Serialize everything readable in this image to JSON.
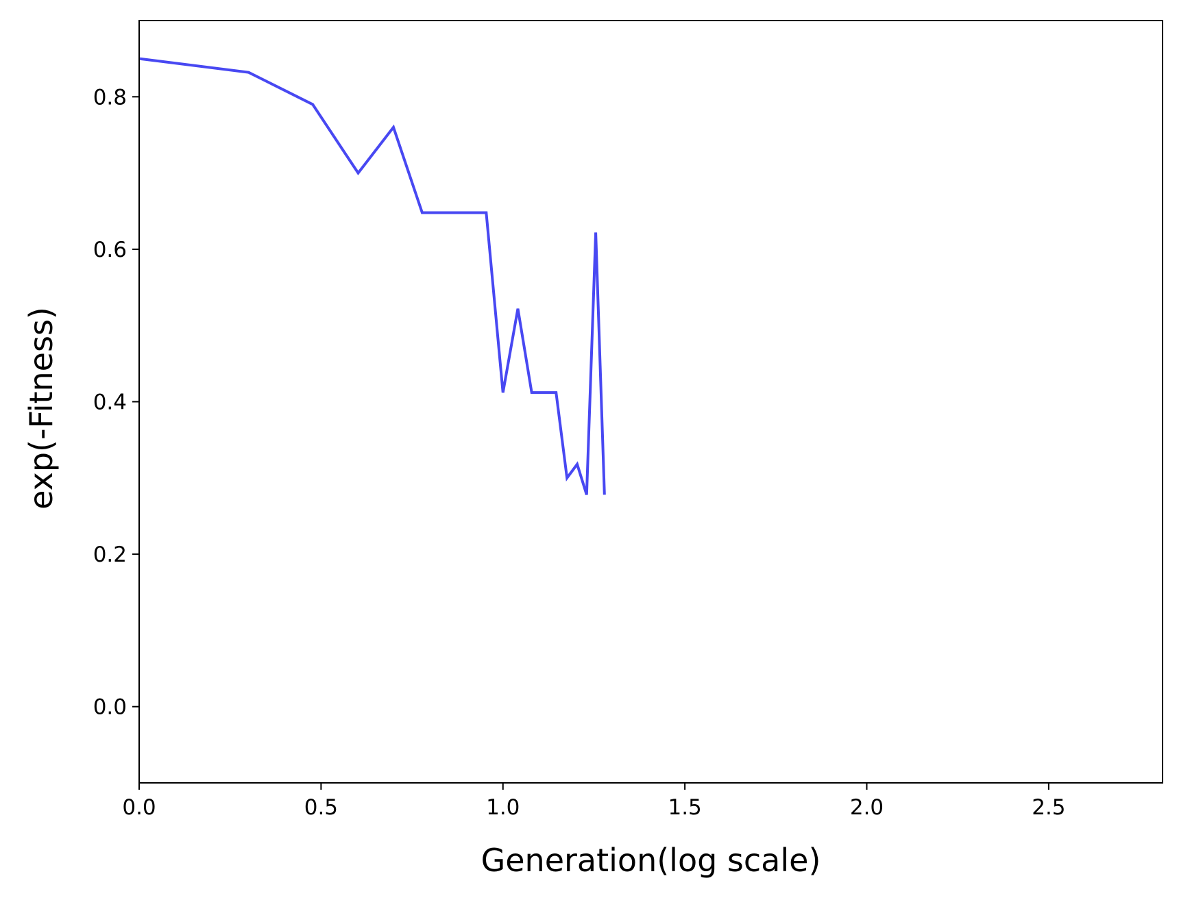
{
  "chart_data": {
    "type": "line",
    "title": "",
    "xlabel": "Generation(log scale)",
    "ylabel": "exp(-Fitness)",
    "xlim": [
      0.0,
      2.813
    ],
    "ylim": [
      -0.1,
      0.9
    ],
    "x_ticks": [
      0.0,
      0.5,
      1.0,
      1.5,
      2.0,
      2.5
    ],
    "y_ticks": [
      0.0,
      0.2,
      0.4,
      0.6,
      0.8
    ],
    "x_tick_labels": [
      "0.0",
      "0.5",
      "1.0",
      "1.5",
      "2.0",
      "2.5"
    ],
    "y_tick_labels": [
      "0.0",
      "0.2",
      "0.4",
      "0.6",
      "0.8"
    ],
    "grid": false,
    "legend": "none",
    "series": [
      {
        "color": "#4848f2",
        "x": [
          0.0,
          0.301,
          0.477,
          0.602,
          0.699,
          0.778,
          0.845,
          0.903,
          0.954,
          1.0,
          1.041,
          1.079,
          1.114,
          1.146,
          1.176,
          1.204,
          1.23,
          1.255,
          1.279
        ],
        "y": [
          0.85,
          0.832,
          0.79,
          0.7,
          0.76,
          0.648,
          0.648,
          0.648,
          0.648,
          0.412,
          0.522,
          0.412,
          0.412,
          0.412,
          0.3,
          0.318,
          0.278,
          0.622,
          0.278
        ]
      }
    ]
  }
}
